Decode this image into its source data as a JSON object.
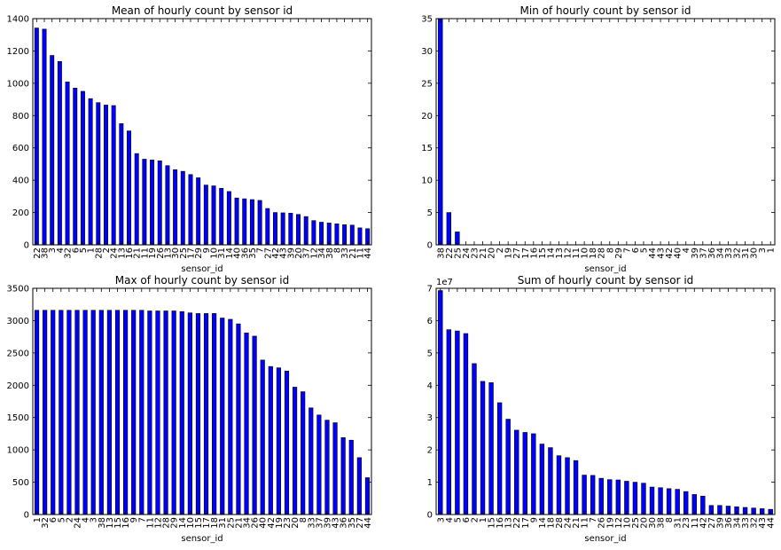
{
  "figure": {
    "background": "#ffffff",
    "bar_color": "#0000ff",
    "bar_edge": "#000000"
  },
  "chart_data": [
    {
      "type": "bar",
      "title": "Mean of hourly count by sensor id",
      "xlabel": "sensor_id",
      "ylabel": "",
      "ylim": [
        0,
        1400
      ],
      "yticks": [
        0,
        200,
        400,
        600,
        800,
        1000,
        1200,
        1400
      ],
      "ytick_labels": [
        "0",
        "200",
        "400",
        "600",
        "800",
        "1000",
        "1200",
        "1400"
      ],
      "exponent_label": "",
      "grid": false,
      "categories": [
        "22",
        "38",
        "3",
        "4",
        "32",
        "6",
        "5",
        "1",
        "28",
        "2",
        "24",
        "13",
        "16",
        "21",
        "11",
        "19",
        "26",
        "13",
        "30",
        "25",
        "17",
        "29",
        "9",
        "10",
        "31",
        "14",
        "40",
        "36",
        "35",
        "7",
        "27",
        "42",
        "43",
        "39",
        "20",
        "37",
        "12",
        "34",
        "38",
        "8",
        "33",
        "21",
        "11",
        "44"
      ],
      "values": [
        1342,
        1335,
        1172,
        1135,
        1008,
        970,
        950,
        905,
        880,
        865,
        862,
        750,
        705,
        565,
        530,
        525,
        520,
        490,
        465,
        455,
        435,
        415,
        370,
        365,
        350,
        330,
        290,
        285,
        280,
        275,
        225,
        200,
        198,
        196,
        188,
        175,
        150,
        140,
        135,
        130,
        125,
        122,
        105,
        100
      ]
    },
    {
      "type": "bar",
      "title": "Min of hourly count by sensor id",
      "xlabel": "sensor_id",
      "ylabel": "",
      "ylim": [
        0,
        35
      ],
      "yticks": [
        0,
        5,
        10,
        15,
        20,
        25,
        30,
        35
      ],
      "ytick_labels": [
        "0",
        "5",
        "10",
        "15",
        "20",
        "25",
        "30",
        "35"
      ],
      "exponent_label": "",
      "grid": false,
      "categories": [
        "38",
        "22",
        "25",
        "24",
        "23",
        "21",
        "20",
        "2",
        "19",
        "27",
        "17",
        "16",
        "15",
        "14",
        "13",
        "12",
        "11",
        "10",
        "18",
        "28",
        "8",
        "29",
        "7",
        "6",
        "5",
        "44",
        "43",
        "42",
        "40",
        "4",
        "39",
        "37",
        "36",
        "34",
        "33",
        "32",
        "31",
        "30",
        "3",
        "1"
      ],
      "values": [
        35,
        5,
        2,
        0,
        0,
        0,
        0,
        0,
        0,
        0,
        0,
        0,
        0,
        0,
        0,
        0,
        0,
        0,
        0,
        0,
        0,
        0,
        0,
        0,
        0,
        0,
        0,
        0,
        0,
        0,
        0,
        0,
        0,
        0,
        0,
        0,
        0,
        0,
        0,
        0
      ]
    },
    {
      "type": "bar",
      "title": "Max of hourly count by sensor id",
      "xlabel": "sensor_id",
      "ylabel": "",
      "ylim": [
        0,
        3500
      ],
      "yticks": [
        0,
        500,
        1000,
        1500,
        2000,
        2500,
        3000,
        3500
      ],
      "ytick_labels": [
        "0",
        "500",
        "1000",
        "1500",
        "2000",
        "2500",
        "3000",
        "3500"
      ],
      "exponent_label": "",
      "grid": false,
      "categories": [
        "1",
        "32",
        "6",
        "5",
        "2",
        "24",
        "4",
        "3",
        "38",
        "13",
        "15",
        "16",
        "9",
        "7",
        "11",
        "12",
        "28",
        "29",
        "14",
        "10",
        "15",
        "17",
        "18",
        "31",
        "25",
        "21",
        "34",
        "26",
        "40",
        "42",
        "19",
        "23",
        "20",
        "8",
        "33",
        "37",
        "39",
        "43",
        "36",
        "35",
        "27",
        "44"
      ],
      "values": [
        3160,
        3160,
        3160,
        3160,
        3160,
        3160,
        3160,
        3160,
        3160,
        3160,
        3160,
        3160,
        3160,
        3160,
        3150,
        3150,
        3150,
        3150,
        3140,
        3120,
        3110,
        3110,
        3110,
        3040,
        3020,
        2950,
        2810,
        2760,
        2390,
        2290,
        2270,
        2220,
        1970,
        1900,
        1650,
        1540,
        1460,
        1420,
        1190,
        1150,
        880,
        570
      ]
    },
    {
      "type": "bar",
      "title": "Sum of hourly count by sensor id",
      "xlabel": "sensor_id",
      "ylabel": "",
      "ylim": [
        0,
        7
      ],
      "yticks": [
        0,
        1,
        2,
        3,
        4,
        5,
        6,
        7
      ],
      "ytick_labels": [
        "0",
        "1",
        "2",
        "3",
        "4",
        "5",
        "6",
        "7"
      ],
      "exponent_label": "1e7",
      "grid": false,
      "categories": [
        "3",
        "4",
        "5",
        "6",
        "2",
        "1",
        "15",
        "16",
        "13",
        "22",
        "17",
        "9",
        "14",
        "18",
        "28",
        "24",
        "21",
        "11",
        "7",
        "26",
        "19",
        "12",
        "10",
        "25",
        "20",
        "30",
        "38",
        "8",
        "31",
        "23",
        "11",
        "42",
        "27",
        "39",
        "36",
        "34",
        "33",
        "32",
        "43",
        "44"
      ],
      "values": [
        6.93,
        5.72,
        5.68,
        5.6,
        4.67,
        4.12,
        4.08,
        3.46,
        2.95,
        2.61,
        2.54,
        2.5,
        2.18,
        2.07,
        1.82,
        1.76,
        1.67,
        1.22,
        1.21,
        1.12,
        1.08,
        1.07,
        1.03,
        1.0,
        0.97,
        0.85,
        0.83,
        0.8,
        0.78,
        0.71,
        0.62,
        0.57,
        0.28,
        0.28,
        0.26,
        0.24,
        0.22,
        0.2,
        0.18,
        0.16
      ]
    }
  ]
}
